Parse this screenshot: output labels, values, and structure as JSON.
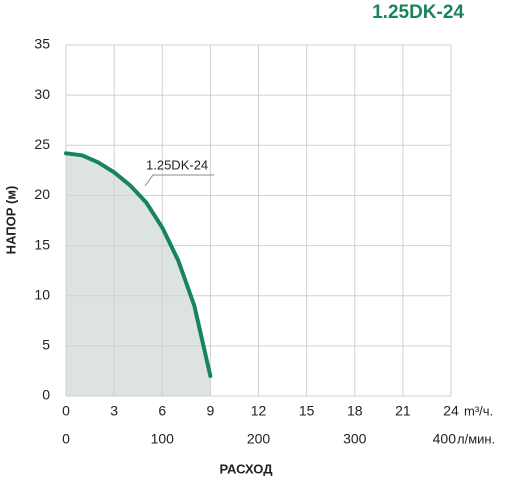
{
  "chart_data": {
    "type": "line",
    "title": "1.25DK-24",
    "y_label": "НАПОР (м)",
    "x_label": "РАСХОД",
    "x_unit": "m³/ч.",
    "x2_unit": "л/мин.",
    "x": [
      0,
      1,
      2,
      3,
      4,
      5,
      6,
      7,
      8,
      9
    ],
    "series": [
      {
        "name": "1.25DK-24",
        "color": "#17855a",
        "fill": "#dde3e3",
        "values": [
          24.2,
          24.0,
          23.3,
          22.3,
          21.0,
          19.3,
          16.8,
          13.5,
          9.0,
          2.0
        ]
      }
    ],
    "xlim": [
      0,
      24
    ],
    "xticks": [
      0,
      3,
      6,
      9,
      12,
      15,
      18,
      21,
      24
    ],
    "x2lim": [
      0,
      400
    ],
    "x2ticks": [
      0,
      100,
      200,
      300,
      400
    ],
    "ylim": [
      0,
      35
    ],
    "yticks": [
      0,
      5,
      10,
      15,
      20,
      25,
      30,
      35
    ],
    "grid": true
  }
}
